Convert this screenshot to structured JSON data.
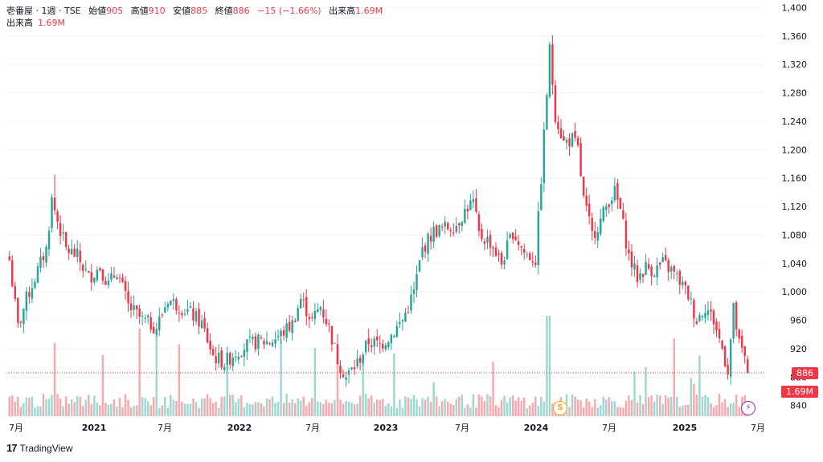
{
  "legend": {
    "symbol": "壱番屋 · 1週 · TSE",
    "open_label": "始値",
    "open": "905",
    "high_label": "高値",
    "high": "910",
    "low_label": "安値",
    "low": "885",
    "close_label": "終値",
    "close": "886",
    "change": "−15 (−1.66%)",
    "volume_label": "出来高",
    "volume": "1.69M"
  },
  "price_labels": {
    "last_price": "886",
    "last_volume": "1.69M"
  },
  "markers": {
    "dividend": "S",
    "split": "⚡"
  },
  "branding": {
    "logo_mark": "17",
    "name": "TradingView"
  },
  "colors": {
    "up": "#26a69a",
    "down": "#f23645",
    "up_vol": "#9fd7d1",
    "down_vol": "#f7a9ae",
    "grid": "#f0f3fa"
  },
  "chart_data": {
    "type": "candlestick",
    "y_axis": {
      "ticks": [
        840,
        880,
        920,
        960,
        1000,
        1040,
        1080,
        1120,
        1160,
        1200,
        1240,
        1280,
        1320,
        1360,
        1400
      ],
      "range": [
        825,
        1405
      ]
    },
    "x_axis": {
      "ticks": [
        "7月",
        "2021",
        "7月",
        "2022",
        "7月",
        "2023",
        "7月",
        "2024",
        "7月",
        "2025",
        "7月"
      ]
    },
    "close_anchors": [
      [
        0,
        1045
      ],
      [
        3,
        950
      ],
      [
        6,
        990
      ],
      [
        9,
        1020
      ],
      [
        13,
        1060
      ],
      [
        15,
        1130
      ],
      [
        17,
        1100
      ],
      [
        20,
        1060
      ],
      [
        24,
        1050
      ],
      [
        28,
        1020
      ],
      [
        32,
        1035
      ],
      [
        35,
        1010
      ],
      [
        38,
        1030
      ],
      [
        42,
        980
      ],
      [
        47,
        960
      ],
      [
        52,
        950
      ],
      [
        56,
        990
      ],
      [
        60,
        980
      ],
      [
        64,
        970
      ],
      [
        68,
        955
      ],
      [
        72,
        910
      ],
      [
        76,
        900
      ],
      [
        80,
        915
      ],
      [
        84,
        925
      ],
      [
        88,
        930
      ],
      [
        92,
        930
      ],
      [
        96,
        940
      ],
      [
        100,
        955
      ],
      [
        103,
        990
      ],
      [
        107,
        960
      ],
      [
        110,
        980
      ],
      [
        113,
        950
      ],
      [
        116,
        905
      ],
      [
        119,
        880
      ],
      [
        123,
        900
      ],
      [
        127,
        930
      ],
      [
        131,
        925
      ],
      [
        135,
        940
      ],
      [
        139,
        960
      ],
      [
        143,
        1000
      ],
      [
        146,
        1060
      ],
      [
        150,
        1085
      ],
      [
        154,
        1090
      ],
      [
        158,
        1095
      ],
      [
        162,
        1120
      ],
      [
        164,
        1125
      ],
      [
        166,
        1080
      ],
      [
        170,
        1070
      ],
      [
        174,
        1040
      ],
      [
        178,
        1085
      ],
      [
        182,
        1055
      ],
      [
        186,
        1045
      ],
      [
        188,
        1160
      ],
      [
        189,
        1220
      ],
      [
        191,
        1340
      ],
      [
        193,
        1250
      ],
      [
        196,
        1210
      ],
      [
        199,
        1215
      ],
      [
        201,
        1200
      ],
      [
        203,
        1130
      ],
      [
        206,
        1080
      ],
      [
        209,
        1100
      ],
      [
        212,
        1130
      ],
      [
        214,
        1140
      ],
      [
        216,
        1115
      ],
      [
        219,
        1050
      ],
      [
        222,
        1020
      ],
      [
        225,
        1035
      ],
      [
        228,
        1030
      ],
      [
        231,
        1040
      ],
      [
        234,
        1030
      ],
      [
        237,
        1015
      ],
      [
        240,
        995
      ],
      [
        243,
        960
      ],
      [
        246,
        980
      ],
      [
        249,
        960
      ],
      [
        252,
        920
      ],
      [
        254,
        890
      ],
      [
        256,
        975
      ],
      [
        258,
        925
      ],
      [
        260,
        905
      ],
      [
        261,
        886
      ]
    ],
    "last": {
      "open": 905,
      "high": 910,
      "low": 885,
      "close": 886,
      "volume": "1.69M"
    }
  }
}
